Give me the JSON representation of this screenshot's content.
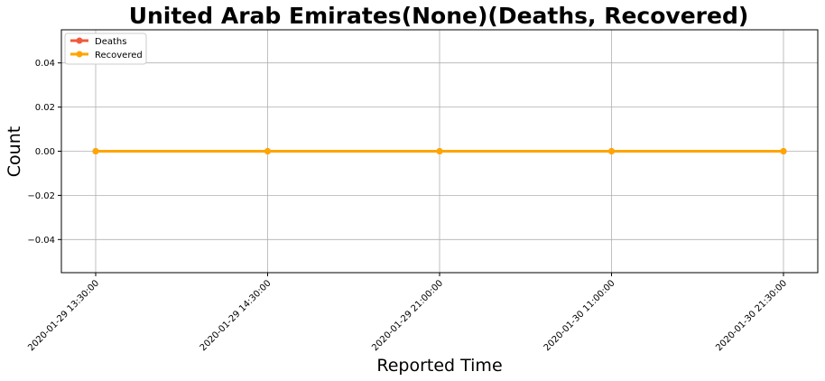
{
  "chart_data": {
    "type": "line",
    "title": "United Arab Emirates(None)(Deaths, Recovered)",
    "xlabel": "Reported Time",
    "ylabel": "Count",
    "categories": [
      "2020-01-29 13:30:00",
      "2020-01-29 14:30:00",
      "2020-01-29 21:00:00",
      "2020-01-30 11:00:00",
      "2020-01-30 21:30:00"
    ],
    "series": [
      {
        "name": "Deaths",
        "values": [
          0,
          0,
          0,
          0,
          0
        ],
        "color": "#f05a3c"
      },
      {
        "name": "Recovered",
        "values": [
          0,
          0,
          0,
          0,
          0
        ],
        "color": "#ffa500"
      }
    ],
    "ylim": [
      -0.055,
      0.055
    ],
    "yticks": [
      -0.04,
      -0.02,
      0.0,
      0.02,
      0.04
    ],
    "ytick_labels": [
      "−0.04",
      "−0.02",
      "0.00",
      "0.02",
      "0.04"
    ],
    "grid": true,
    "legend_position": "top-left"
  }
}
